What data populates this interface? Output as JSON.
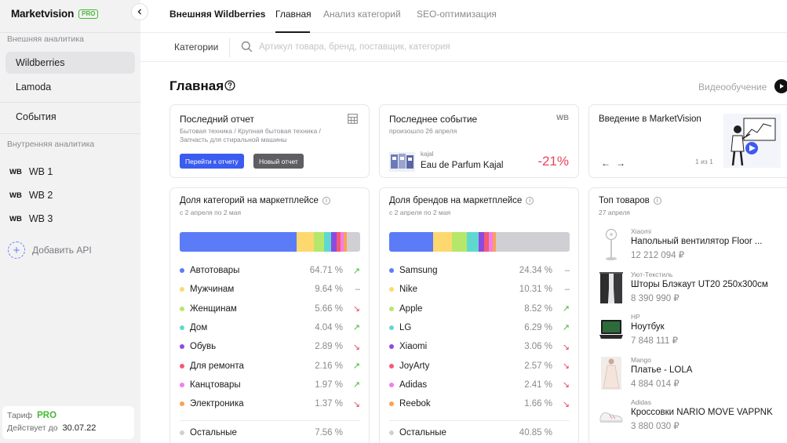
{
  "app": {
    "name": "Marketvision",
    "plan_badge": "PRO"
  },
  "sidebar": {
    "external_section": "Внешняя аналитика",
    "external_items": [
      {
        "label": "Wildberries",
        "active": true
      },
      {
        "label": "Lamoda",
        "active": false
      },
      {
        "label": "События",
        "active": false
      }
    ],
    "internal_section": "Внутренняя аналитика",
    "accounts": [
      {
        "tag": "WB",
        "label": "WB 1"
      },
      {
        "tag": "WB",
        "label": "WB 2"
      },
      {
        "tag": "WB",
        "label": "WB 3"
      }
    ],
    "add_api": "Добавить API",
    "tariff": {
      "label": "Тариф",
      "plan": "PRO",
      "valid_label": "Действует до",
      "valid_date": "30.07.22"
    }
  },
  "topnav": {
    "tabs": [
      {
        "label": "Внешняя Wildberries"
      },
      {
        "label": "Главная"
      },
      {
        "label": "Анализ категорий"
      },
      {
        "label": "SEO-оптимизация"
      }
    ],
    "active_index": 1
  },
  "search": {
    "categories_label": "Категории",
    "placeholder": "Артикул товара, бренд, поставщик, категория",
    "value": ""
  },
  "page": {
    "title": "Главная",
    "video_label": "Видеообучение"
  },
  "last_report": {
    "title": "Последний отчет",
    "path": "Бытовая техника / Крупная бытовая техника / Запчасть для стиральной машины",
    "go_button": "Перейти к отчету",
    "new_button": "Новый отчет"
  },
  "last_event": {
    "title": "Последнее событие",
    "tag": "WB",
    "date": "произошло 26 апреля",
    "brand": "kajal",
    "product": "Eau de Parfum Kajal",
    "change": "-21%"
  },
  "intro": {
    "title": "Введение в MarketVision",
    "pager": "1 из 1"
  },
  "category_share": {
    "title": "Доля категорий на маркетплейсе",
    "period": "с 2 апреля по 2 мая",
    "segments": [
      {
        "name": "Автотовары",
        "pct": 64.71,
        "label": "64.71 %",
        "color": "#5b7cf6",
        "trend": "up"
      },
      {
        "name": "Мужчинам",
        "pct": 9.64,
        "label": "9.64 %",
        "color": "#fdd86f",
        "trend": "flat"
      },
      {
        "name": "Женщинам",
        "pct": 5.66,
        "label": "5.66 %",
        "color": "#b5e86a",
        "trend": "down"
      },
      {
        "name": "Дом",
        "pct": 4.04,
        "label": "4.04 %",
        "color": "#5fd9d0",
        "trend": "up"
      },
      {
        "name": "Обувь",
        "pct": 2.89,
        "label": "2.89 %",
        "color": "#8c4be0",
        "trend": "down"
      },
      {
        "name": "Для ремонта",
        "pct": 2.16,
        "label": "2.16 %",
        "color": "#f35b74",
        "trend": "up"
      },
      {
        "name": "Канцтовары",
        "pct": 1.97,
        "label": "1.97 %",
        "color": "#f37dec",
        "trend": "up"
      },
      {
        "name": "Электроника",
        "pct": 1.37,
        "label": "1.37 %",
        "color": "#f9a256",
        "trend": "down"
      }
    ],
    "other": {
      "name": "Остальные",
      "pct": 7.56,
      "label": "7.56 %",
      "color": "#d0d0d4"
    }
  },
  "brand_share": {
    "title": "Доля брендов на маркетплейсе",
    "period": "с 2 апреля по 2 мая",
    "segments": [
      {
        "name": "Samsung",
        "pct": 24.34,
        "label": "24.34 %",
        "color": "#5b7cf6",
        "trend": "flat"
      },
      {
        "name": "Nike",
        "pct": 10.31,
        "label": "10.31 %",
        "color": "#fdd86f",
        "trend": "flat"
      },
      {
        "name": "Apple",
        "pct": 8.52,
        "label": "8.52 %",
        "color": "#b5e86a",
        "trend": "up"
      },
      {
        "name": "LG",
        "pct": 6.29,
        "label": "6.29 %",
        "color": "#5fd9d0",
        "trend": "up"
      },
      {
        "name": "Xiaomi",
        "pct": 3.06,
        "label": "3.06 %",
        "color": "#8c4be0",
        "trend": "down"
      },
      {
        "name": "JoyArty",
        "pct": 2.57,
        "label": "2.57 %",
        "color": "#f35b74",
        "trend": "down"
      },
      {
        "name": "Adidas",
        "pct": 2.41,
        "label": "2.41 %",
        "color": "#f37dec",
        "trend": "down"
      },
      {
        "name": "Reebok",
        "pct": 1.66,
        "label": "1.66 %",
        "color": "#f9a256",
        "trend": "down"
      }
    ],
    "other": {
      "name": "Остальные",
      "pct": 40.85,
      "label": "40.85 %",
      "color": "#d0d0d4"
    }
  },
  "top_products": {
    "title": "Топ товаров",
    "date": "27 апреля",
    "items": [
      {
        "brand": "Xiaomi",
        "name": "Напольный вентилятор Floor ...",
        "price": "12 212 094 ₽",
        "icon": "fan-icon"
      },
      {
        "brand": "Уют-Текстиль",
        "name": "Шторы Блэкаут UT20 250х300см",
        "price": "8 390 990 ₽",
        "icon": "curtains-icon"
      },
      {
        "brand": "HP",
        "name": "Ноутбук",
        "price": "7 848 111 ₽",
        "icon": "laptop-icon"
      },
      {
        "brand": "Mango",
        "name": "Платье - LOLA",
        "price": "4 884 014 ₽",
        "icon": "dress-icon"
      },
      {
        "brand": "Adidas",
        "name": "Кроссовки NARIO MOVE VAPPNK",
        "price": "3 880 030 ₽",
        "icon": "sneaker-icon"
      }
    ]
  }
}
